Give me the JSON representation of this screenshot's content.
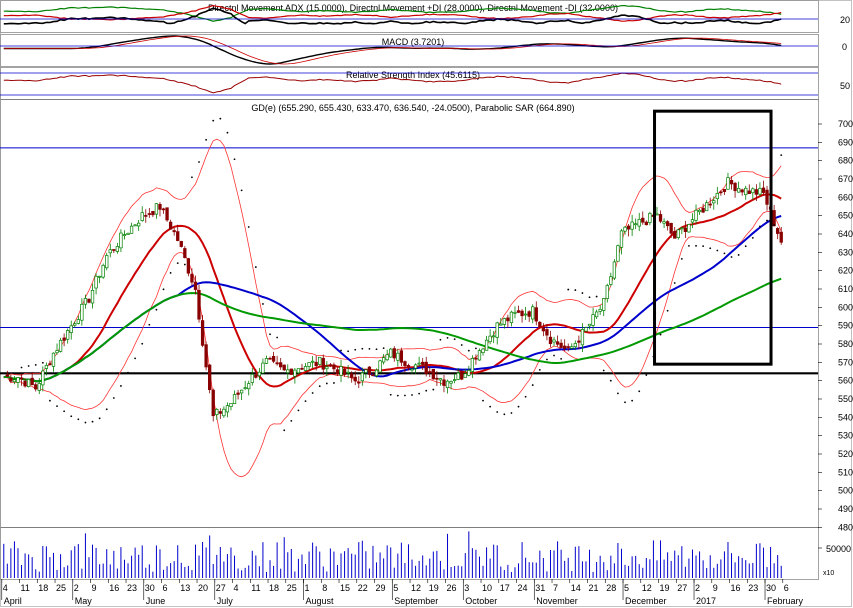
{
  "chart_data": {
    "type": "candlestick",
    "panels": {
      "adx": {
        "title": "Directnl Movement ADX (15.0000), Directnl Movement +DI (28.0000), Directnl Movement -DI (32.0000)",
        "ticks": [
          "20"
        ],
        "series_colors": {
          "adx": "#000000",
          "plus_di": "#008000",
          "minus_di": "#cc0000"
        }
      },
      "macd": {
        "title": "MACD (3.7201)",
        "ticks": [
          "0"
        ],
        "series_colors": {
          "macd": "#000000",
          "signal": "#cc0000"
        }
      },
      "rsi": {
        "title": "Relative Strength Index (45.6115)",
        "ticks": [
          "50"
        ],
        "series_colors": {
          "rsi": "#990000"
        }
      },
      "price": {
        "title": "GD(e) (655.290, 655.430, 633.470, 636.540, -24.0500), Parabolic SAR (664.890)",
        "y_ticks": [
          "700",
          "690",
          "680",
          "670",
          "660",
          "650",
          "640",
          "630",
          "620",
          "610",
          "600",
          "590",
          "580",
          "570",
          "560",
          "550",
          "540",
          "530",
          "520",
          "510",
          "500",
          "490",
          "480"
        ],
        "ylim": [
          472,
          706
        ],
        "hlines": [
          {
            "value": 687,
            "color": "#0000cc"
          },
          {
            "value": 589,
            "color": "#0000cc"
          },
          {
            "value": 564,
            "color": "#000000"
          }
        ],
        "highlight_box": {
          "from": "Dec 19",
          "to": "Jan 30",
          "low": 569,
          "high": 707
        },
        "colors": {
          "up": "#008000",
          "down": "#880000",
          "ma_short": "#cc0000",
          "ma_mid": "#0000cc",
          "ma_long": "#009900",
          "bands": "#ff3333",
          "sar": "#000000"
        }
      },
      "volume": {
        "ticks": [
          "50000",
          "x10"
        ],
        "color": "#0000cc"
      }
    },
    "x_axis": {
      "days": [
        "4",
        "11",
        "18",
        "25",
        "2",
        "9",
        "16",
        "23",
        "30",
        "6",
        "13",
        "20",
        "27",
        "4",
        "11",
        "18",
        "25",
        "1",
        "8",
        "15",
        "22",
        "29",
        "5",
        "12",
        "19",
        "26",
        "3",
        "10",
        "17",
        "24",
        "31",
        "7",
        "14",
        "21",
        "28",
        "5",
        "12",
        "19",
        "27",
        "2",
        "9",
        "16",
        "23",
        "30",
        "6"
      ],
      "months": [
        {
          "label": "April",
          "at": "4"
        },
        {
          "label": "May",
          "at": "2"
        },
        {
          "label": "June",
          "at": "30"
        },
        {
          "label": "July",
          "at": "27"
        },
        {
          "label": "August",
          "at": "1"
        },
        {
          "label": "September",
          "at": "5"
        },
        {
          "label": "October",
          "at": "3"
        },
        {
          "label": "November",
          "at": "31"
        },
        {
          "label": "December",
          "at": "5"
        },
        {
          "label": "2017",
          "at": "2"
        },
        {
          "label": "February",
          "at": "30"
        }
      ]
    },
    "weekly_close": [
      562,
      556,
      575,
      590,
      605,
      628,
      640,
      650,
      655,
      637,
      610,
      540,
      548,
      560,
      570,
      565,
      568,
      570,
      566,
      560,
      566,
      575,
      570,
      566,
      560,
      563,
      577,
      590,
      596,
      598,
      583,
      576,
      588,
      602,
      640,
      646,
      650,
      638,
      648,
      658,
      668,
      664,
      662,
      636
    ],
    "ohlc_last": {
      "open": 655.29,
      "high": 655.43,
      "low": 633.47,
      "close": 636.54,
      "change": -24.05
    },
    "parabolic_sar_last": 664.89
  }
}
